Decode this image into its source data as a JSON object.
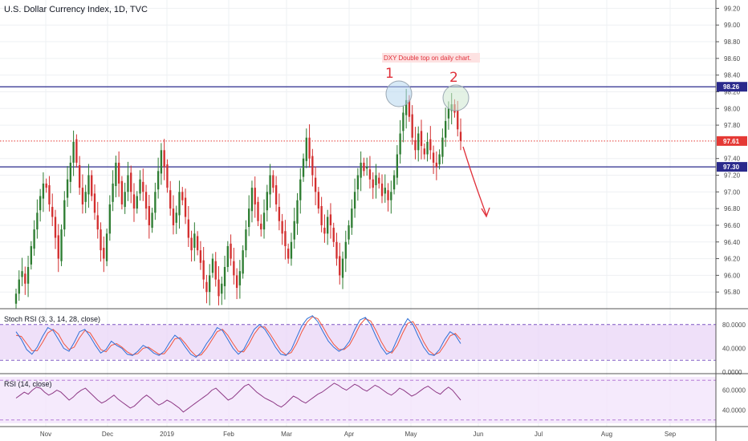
{
  "chart_data": {
    "type": "candlestick",
    "title": "U.S. Dollar Currency Index, 1D, TVC",
    "x_labels": [
      "Nov",
      "Dec",
      "2019",
      "Feb",
      "Mar",
      "Apr",
      "May",
      "Jun",
      "Jul",
      "Aug",
      "Sep"
    ],
    "price_axis": {
      "ylim": [
        95.6,
        99.3
      ],
      "ticks": [
        "99.20",
        "99.00",
        "98.80",
        "98.60",
        "98.40",
        "98.20",
        "98.00",
        "97.80",
        "97.40",
        "97.20",
        "97.00",
        "96.80",
        "96.60",
        "96.40",
        "96.20",
        "96.00",
        "95.80"
      ]
    },
    "closes": [
      95.78,
      95.95,
      96.05,
      95.9,
      96.1,
      96.35,
      96.55,
      96.75,
      96.95,
      97.1,
      97.05,
      96.85,
      96.7,
      96.45,
      96.2,
      96.55,
      96.9,
      97.15,
      97.35,
      97.6,
      97.35,
      97.05,
      96.85,
      97.0,
      97.2,
      96.95,
      96.75,
      96.55,
      96.3,
      96.2,
      96.5,
      96.85,
      97.1,
      97.35,
      97.1,
      96.85,
      97.0,
      97.2,
      97.0,
      96.8,
      96.95,
      97.15,
      97.0,
      96.8,
      96.6,
      96.75,
      97.0,
      97.25,
      97.5,
      97.3,
      97.05,
      96.8,
      96.6,
      96.75,
      97.0,
      96.9,
      96.7,
      96.45,
      96.3,
      96.5,
      96.3,
      96.15,
      95.95,
      95.8,
      96.0,
      96.2,
      95.95,
      95.75,
      95.9,
      96.1,
      96.35,
      96.2,
      96.0,
      95.85,
      96.05,
      96.3,
      96.55,
      96.8,
      97.05,
      96.85,
      96.65,
      96.55,
      96.75,
      97.0,
      97.2,
      97.05,
      96.85,
      96.65,
      96.5,
      96.35,
      96.2,
      96.4,
      96.65,
      96.9,
      97.15,
      97.4,
      97.65,
      97.4,
      97.2,
      97.0,
      96.8,
      96.6,
      96.5,
      96.7,
      96.6,
      96.4,
      96.2,
      96.0,
      96.2,
      96.4,
      96.6,
      96.8,
      97.0,
      97.2,
      97.35,
      97.25,
      97.3,
      97.15,
      97.05,
      97.2,
      97.1,
      96.95,
      97.05,
      96.9,
      97.0,
      97.2,
      97.45,
      97.7,
      97.95,
      98.1,
      97.9,
      97.65,
      97.5,
      97.7,
      97.55,
      97.45,
      97.6,
      97.5,
      97.35,
      97.3,
      97.45,
      97.65,
      97.85,
      98.0,
      98.05,
      97.95,
      97.75,
      97.61
    ],
    "current_price": "97.61",
    "horizontal_lines": [
      {
        "value": 98.26,
        "label": "98.26",
        "color": "#2a2a8c"
      },
      {
        "value": 97.3,
        "label": "97.30",
        "color": "#2a2a8c"
      }
    ],
    "current_price_color": "#e53935",
    "up_color": "#2e7d32",
    "down_color": "#d32f2f",
    "annotation": "DXY Double top on daily chart.",
    "peak_labels": [
      "1",
      "2"
    ],
    "stoch_rsi": {
      "label": "Stoch RSI (3, 3, 14, 28, close)",
      "ylim": [
        0,
        100
      ],
      "ticks": [
        "80.0000",
        "40.0000",
        "0.0000"
      ],
      "bands": [
        80,
        20
      ],
      "k": [
        68,
        55,
        38,
        30,
        42,
        60,
        75,
        70,
        55,
        40,
        35,
        50,
        68,
        72,
        60,
        45,
        32,
        38,
        52,
        45,
        40,
        30,
        28,
        35,
        45,
        40,
        32,
        28,
        35,
        50,
        62,
        55,
        42,
        30,
        25,
        33,
        48,
        60,
        75,
        70,
        55,
        40,
        30,
        38,
        55,
        72,
        80,
        72,
        58,
        42,
        30,
        28,
        38,
        58,
        78,
        90,
        95,
        85,
        68,
        52,
        42,
        35,
        40,
        52,
        72,
        88,
        92,
        80,
        60,
        42,
        30,
        35,
        55,
        75,
        90,
        80,
        60,
        42,
        30,
        28,
        38,
        55,
        68,
        62,
        48
      ],
      "d": [
        62,
        60,
        48,
        36,
        36,
        50,
        66,
        72,
        64,
        48,
        38,
        42,
        58,
        70,
        66,
        52,
        38,
        34,
        45,
        48,
        42,
        34,
        29,
        31,
        40,
        42,
        36,
        30,
        31,
        42,
        56,
        58,
        48,
        36,
        27,
        29,
        40,
        54,
        68,
        72,
        62,
        48,
        35,
        34,
        47,
        64,
        76,
        76,
        64,
        50,
        36,
        29,
        33,
        48,
        68,
        84,
        93,
        90,
        76,
        60,
        47,
        38,
        38,
        46,
        62,
        80,
        90,
        86,
        70,
        51,
        36,
        32,
        45,
        65,
        82,
        85,
        70,
        51,
        36,
        29,
        33,
        46,
        61,
        65,
        55
      ]
    },
    "rsi": {
      "label": "RSI (14, close)",
      "ylim": [
        25,
        75
      ],
      "ticks": [
        "60.0000",
        "40.0000"
      ],
      "bands": [
        70,
        30
      ],
      "values": [
        52,
        55,
        58,
        56,
        60,
        63,
        62,
        58,
        55,
        57,
        60,
        58,
        54,
        50,
        53,
        57,
        60,
        62,
        58,
        54,
        50,
        47,
        49,
        52,
        55,
        51,
        48,
        45,
        42,
        44,
        48,
        52,
        55,
        52,
        48,
        45,
        47,
        50,
        48,
        45,
        42,
        38,
        41,
        44,
        47,
        50,
        53,
        56,
        60,
        62,
        58,
        54,
        50,
        52,
        56,
        60,
        64,
        66,
        62,
        58,
        55,
        52,
        50,
        48,
        45,
        43,
        46,
        50,
        54,
        52,
        49,
        47,
        50,
        53,
        56,
        58,
        61,
        64,
        67,
        65,
        62,
        60,
        63,
        66,
        64,
        61,
        59,
        62,
        65,
        63,
        60,
        57,
        55,
        58,
        62,
        60,
        57,
        54,
        56,
        59,
        62,
        64,
        61,
        58,
        56,
        60,
        63,
        60,
        55,
        50
      ]
    }
  }
}
